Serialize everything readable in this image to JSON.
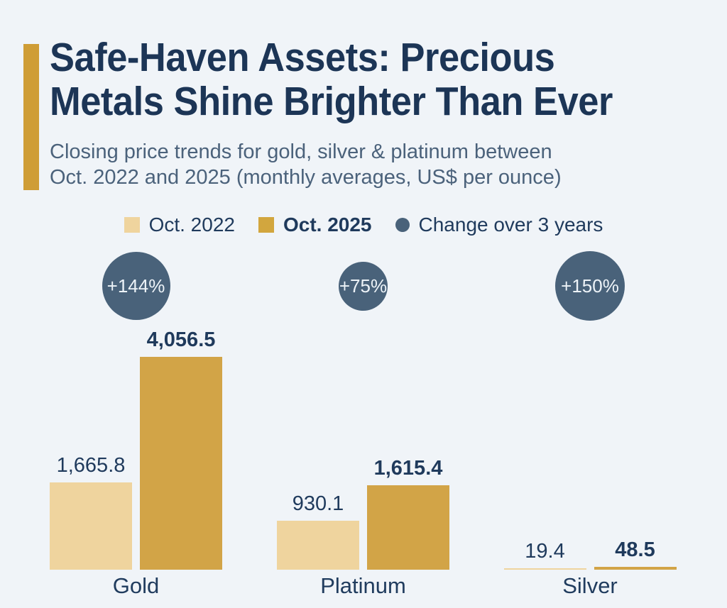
{
  "header": {
    "title_line1": "Safe-Haven Assets: Precious",
    "title_line2": "Metals Shine Brighter Than Ever",
    "subtitle_line1": "Closing price trends for gold, silver & platinum between",
    "subtitle_line2": "Oct. 2022 and 2025 (monthly averages, US$ per ounce)"
  },
  "legend": {
    "items": [
      {
        "label": "Oct. 2022",
        "swatch": "square-light-tan"
      },
      {
        "label": "Oct. 2025",
        "swatch": "square-gold"
      },
      {
        "label": "Change over 3 years",
        "swatch": "circle-slate"
      }
    ]
  },
  "colors": {
    "background": "#f0f4f8",
    "title_navy": "#1c3556",
    "subtitle_slate": "#4b627b",
    "bar_oct_2022": "#efd49e",
    "bar_oct_2025": "#d2a447",
    "accent_gold": "#cf9d36",
    "change_circle": "#49627a",
    "circle_text": "#edf3f8"
  },
  "chart_data": {
    "type": "bar",
    "title": "Safe-Haven Assets: Precious Metals Shine Brighter Than Ever",
    "subtitle": "Closing price trends for gold, silver & platinum between Oct. 2022 and 2025 (monthly averages, US$ per ounce)",
    "ylabel": "US$ per ounce",
    "ylim": [
      0,
      4056.5
    ],
    "grid": false,
    "legend_position": "top-center",
    "categories": [
      "Gold",
      "Platinum",
      "Silver"
    ],
    "series": [
      {
        "name": "Oct. 2022",
        "values": [
          1665.8,
          930.1,
          19.4
        ]
      },
      {
        "name": "Oct. 2025",
        "values": [
          4056.5,
          1615.4,
          48.5
        ]
      }
    ],
    "value_labels": [
      [
        "1,665.8",
        "4,056.5"
      ],
      [
        "930.1",
        "1,615.4"
      ],
      [
        "19.4",
        "48.5"
      ]
    ],
    "change_labels": [
      "+144%",
      "+75%",
      "+150%"
    ],
    "change_pct": [
      144,
      75,
      150
    ]
  }
}
